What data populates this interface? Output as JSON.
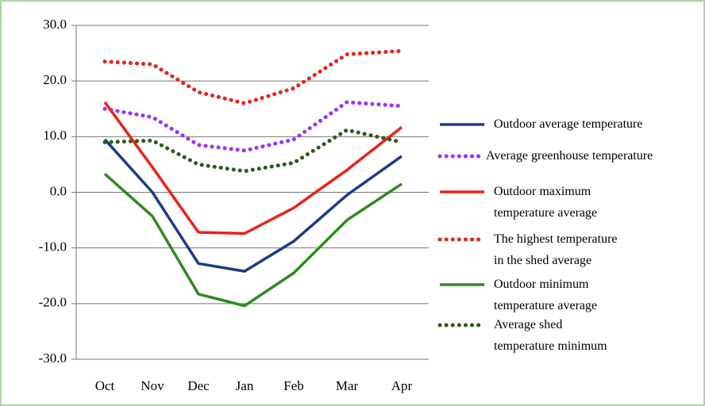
{
  "chart_data": {
    "type": "line",
    "categories": [
      "Oct",
      "Nov",
      "Dec",
      "Jan",
      "Feb",
      "Mar",
      "Apr"
    ],
    "ylim": [
      -30,
      30
    ],
    "yticks": [
      {
        "value": 30,
        "label": "30.0"
      },
      {
        "value": 20,
        "label": "20.0"
      },
      {
        "value": 10,
        "label": "10.0"
      },
      {
        "value": 0,
        "label": "0.0"
      },
      {
        "value": -10,
        "label": "-10.0"
      },
      {
        "value": -20,
        "label": "-20.0"
      },
      {
        "value": -30,
        "label": "-30.0"
      }
    ],
    "grid": true,
    "legend": "right",
    "series": [
      {
        "name": "Outdoor average temperature",
        "color": "#1f3a8a",
        "style": "solid",
        "values": [
          9.5,
          0,
          -12.8,
          -14.2,
          -8.8,
          -0.5,
          6.5
        ]
      },
      {
        "name": "Average greenhouse temperature",
        "color": "#9b30ff",
        "style": "dotted",
        "values": [
          15,
          13.5,
          8.5,
          7.5,
          9.5,
          16.2,
          15.5
        ]
      },
      {
        "name": "Outdoor maximum temperature average",
        "color": "#e8231a",
        "style": "solid",
        "values": [
          16.2,
          4.5,
          -7.2,
          -7.4,
          -2.8,
          4,
          11.7
        ]
      },
      {
        "name": "The highest temperature in the shed average",
        "color": "#e8231a",
        "style": "dotted",
        "values": [
          23.5,
          23,
          18,
          16,
          18.7,
          24.8,
          25.4
        ]
      },
      {
        "name": "Outdoor minimum temperature average",
        "color": "#2e8b1e",
        "style": "solid",
        "values": [
          3.3,
          -4.3,
          -18.3,
          -20.4,
          -14.5,
          -5,
          1.5
        ]
      },
      {
        "name": "Average shed temperature minimum",
        "color": "#2d5a1a",
        "style": "dotted",
        "values": [
          9,
          9.3,
          5,
          3.8,
          5.3,
          11.2,
          9
        ]
      }
    ]
  }
}
